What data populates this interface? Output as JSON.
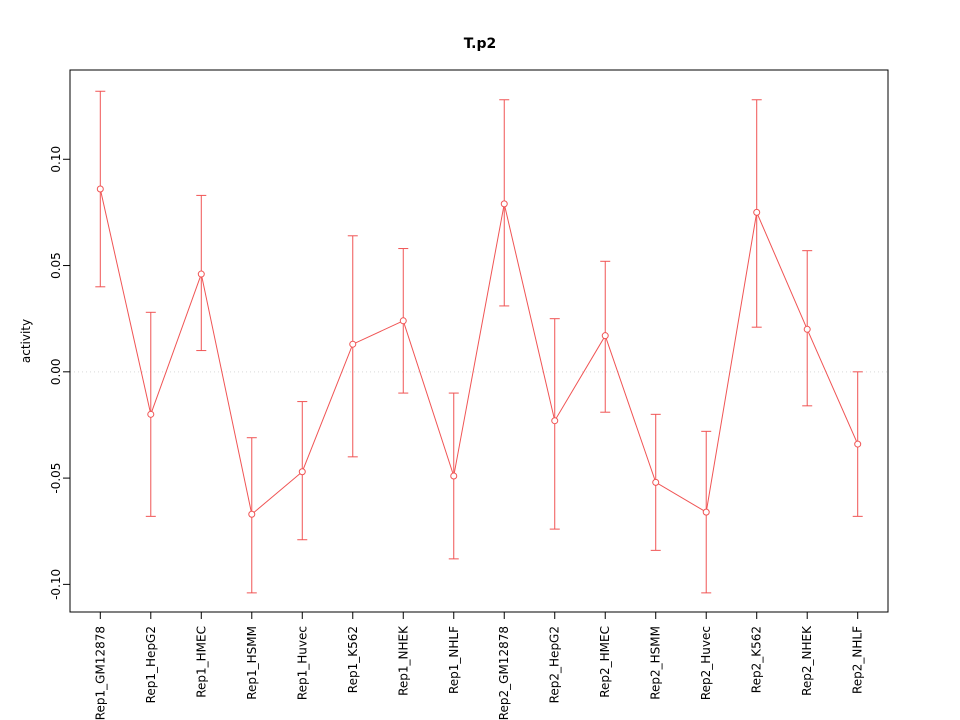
{
  "chart_data": {
    "type": "line",
    "title": "T.p2",
    "xlabel": "",
    "ylabel": "activity",
    "categories": [
      "Rep1_GM12878",
      "Rep1_HepG2",
      "Rep1_HMEC",
      "Rep1_HSMM",
      "Rep1_Huvec",
      "Rep1_K562",
      "Rep1_NHEK",
      "Rep1_NHLF",
      "Rep2_GM12878",
      "Rep2_HepG2",
      "Rep2_HMEC",
      "Rep2_HSMM",
      "Rep2_Huvec",
      "Rep2_K562",
      "Rep2_NHEK",
      "Rep2_NHLF"
    ],
    "values": [
      0.086,
      -0.02,
      0.046,
      -0.067,
      -0.047,
      0.013,
      0.024,
      -0.049,
      0.079,
      -0.023,
      0.017,
      -0.052,
      -0.066,
      0.075,
      0.02,
      -0.034
    ],
    "error_high": [
      0.132,
      0.028,
      0.083,
      -0.031,
      -0.014,
      0.064,
      0.058,
      -0.01,
      0.128,
      0.025,
      0.052,
      -0.02,
      -0.028,
      0.128,
      0.057,
      0.0
    ],
    "error_low": [
      0.04,
      -0.068,
      0.01,
      -0.104,
      -0.079,
      -0.04,
      -0.01,
      -0.088,
      0.031,
      -0.074,
      -0.019,
      -0.084,
      -0.104,
      0.021,
      -0.016,
      -0.068
    ],
    "yticks": [
      -0.1,
      -0.05,
      0.0,
      0.05,
      0.1
    ],
    "ylim": [
      -0.113,
      0.142
    ],
    "grid": false,
    "legend": "none",
    "zero_reference_line": 0,
    "line_color": "#f05454",
    "zero_line_color": "#d9d9d9",
    "axis_color": "#000000"
  }
}
